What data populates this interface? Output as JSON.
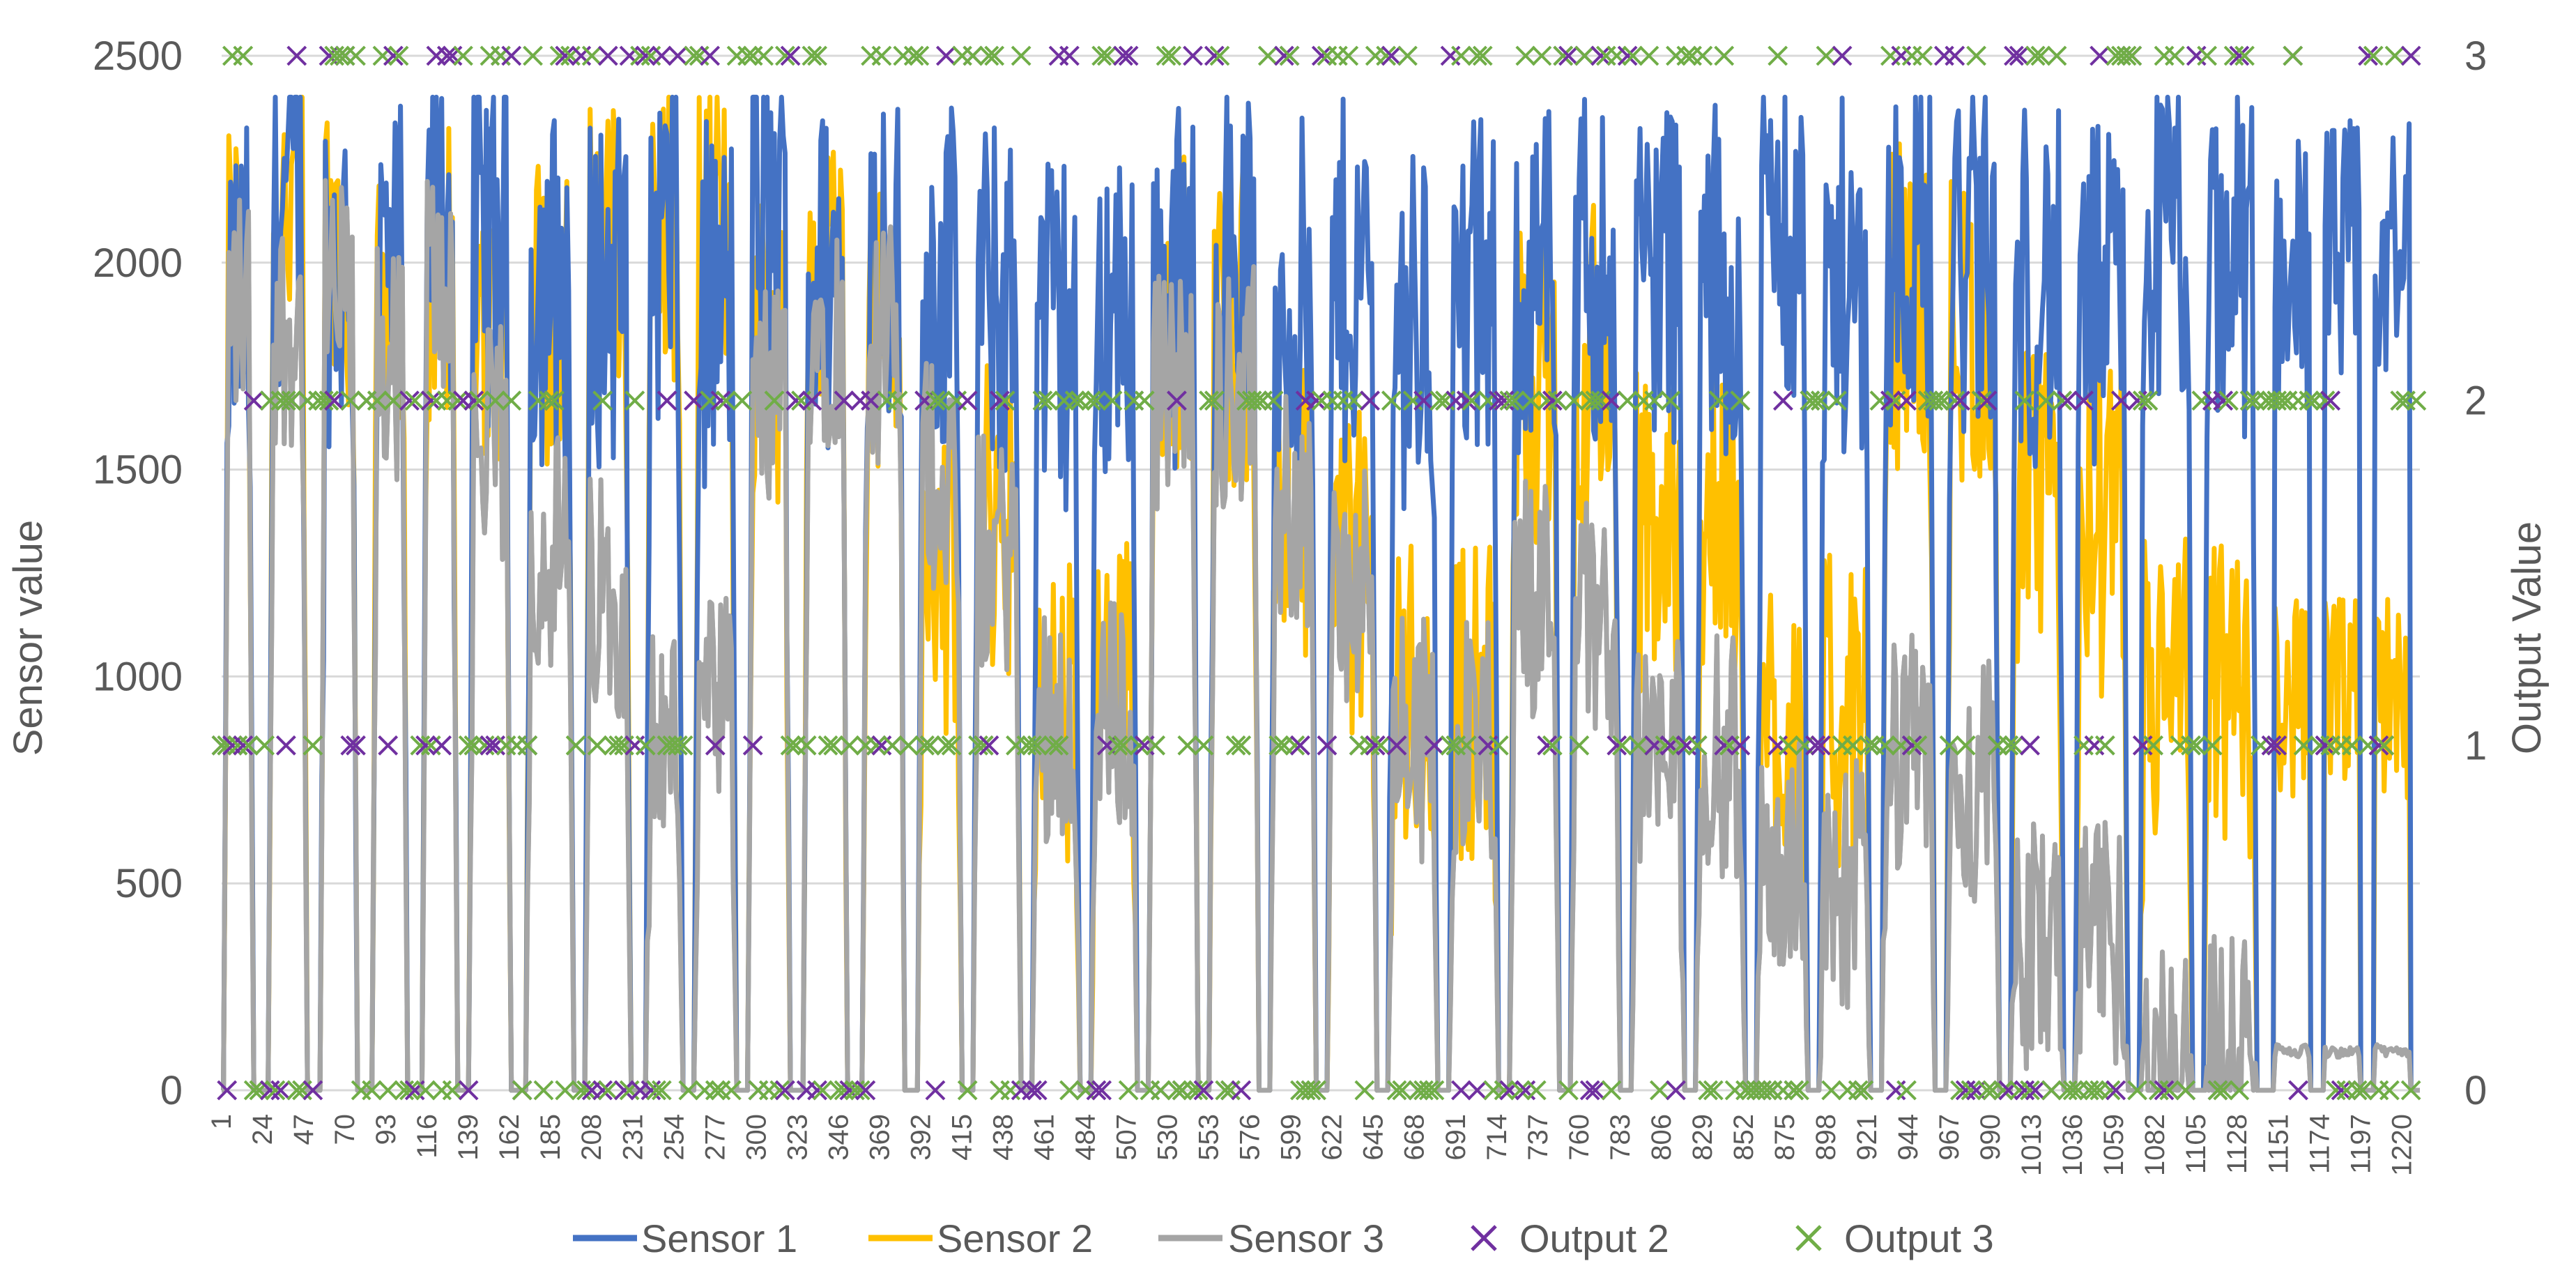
{
  "chart_data": {
    "type": "line",
    "title": "",
    "xlabel": "",
    "ylabel": "Sensor value",
    "y2label": "Output Value",
    "ylim": [
      0,
      2500
    ],
    "y2lim": [
      0,
      3
    ],
    "xlim": [
      1,
      1230
    ],
    "grid": true,
    "legend_position": "bottom",
    "y_ticks": [
      "0",
      "500",
      "1000",
      "1500",
      "2000",
      "2500"
    ],
    "y2_ticks": [
      "0",
      "1",
      "2",
      "3"
    ],
    "x_ticks": [
      "1",
      "24",
      "47",
      "70",
      "93",
      "116",
      "139",
      "162",
      "185",
      "208",
      "231",
      "254",
      "277",
      "300",
      "323",
      "346",
      "369",
      "392",
      "415",
      "438",
      "461",
      "484",
      "507",
      "530",
      "553",
      "576",
      "599",
      "622",
      "645",
      "668",
      "691",
      "714",
      "737",
      "760",
      "783",
      "806",
      "829",
      "852",
      "875",
      "898",
      "921",
      "944",
      "967",
      "990",
      "1013",
      "1036",
      "1059",
      "1082",
      "1105",
      "1128",
      "1151",
      "1174",
      "1197",
      "1220"
    ],
    "colors": {
      "sensor1": "#4472C4",
      "sensor2": "#FFC000",
      "sensor3": "#A5A5A5",
      "output2": "#7030A0",
      "output3": "#70AD47",
      "grid": "#D9D9D9",
      "text": "#595959"
    },
    "sensor_segments": {
      "description_note": "Sensor readings form repeated plateau pulses; each segment [start_sample, end_sample, sensor1_level, sensor2_level, sensor3_level]",
      "segments": [
        [
          3,
          18,
          1900,
          2000,
          1900
        ],
        [
          28,
          48,
          2150,
          2150,
          1850
        ],
        [
          57,
          76,
          2000,
          2050,
          1900
        ],
        [
          86,
          104,
          1950,
          2000,
          1750
        ],
        [
          114,
          132,
          2100,
          2000,
          1950
        ],
        [
          140,
          162,
          2050,
          1900,
          1550
        ],
        [
          172,
          197,
          1950,
          1900,
          1300
        ],
        [
          205,
          229,
          1950,
          2000,
          1200
        ],
        [
          239,
          258,
          2050,
          2100,
          850
        ],
        [
          266,
          288,
          1900,
          2050,
          900
        ],
        [
          296,
          318,
          2100,
          1800,
          1650
        ],
        [
          327,
          350,
          1950,
          1950,
          1850
        ],
        [
          360,
          382,
          2050,
          1850,
          1800
        ],
        [
          391,
          414,
          1950,
          1250,
          1500
        ],
        [
          422,
          447,
          1900,
          1400,
          1300
        ],
        [
          455,
          480,
          1850,
          900,
          900
        ],
        [
          488,
          512,
          1900,
          950,
          900
        ],
        [
          520,
          546,
          1950,
          1900,
          1700
        ],
        [
          554,
          580,
          2000,
          1850,
          1700
        ],
        [
          588,
          612,
          1900,
          1450,
          1400
        ],
        [
          620,
          646,
          1950,
          1250,
          1200
        ],
        [
          654,
          680,
          1850,
          950,
          850
        ],
        [
          688,
          714,
          1900,
          950,
          850
        ],
        [
          722,
          748,
          1950,
          1700,
          1200
        ],
        [
          756,
          782,
          2000,
          1750,
          1150
        ],
        [
          790,
          818,
          2000,
          1350,
          800
        ],
        [
          826,
          852,
          1950,
          1350,
          800
        ],
        [
          860,
          887,
          2050,
          900,
          550
        ],
        [
          895,
          922,
          1950,
          900,
          500
        ],
        [
          930,
          958,
          2050,
          1900,
          800
        ],
        [
          966,
          994,
          2000,
          1850,
          750
        ],
        [
          1002,
          1030,
          1950,
          1400,
          350
        ],
        [
          1038,
          1066,
          1900,
          1350,
          350
        ],
        [
          1074,
          1102,
          2050,
          950,
          90
        ],
        [
          1110,
          1138,
          2000,
          950,
          90
        ]
      ]
    },
    "series": [
      {
        "name": "Sensor 1",
        "type": "line",
        "axis": "left"
      },
      {
        "name": "Sensor 2",
        "type": "line",
        "axis": "left"
      },
      {
        "name": "Sensor 3",
        "type": "line",
        "axis": "left"
      },
      {
        "name": "Output 2",
        "type": "marker",
        "marker": "x",
        "axis": "right"
      },
      {
        "name": "Output 3",
        "type": "marker",
        "marker": "x",
        "axis": "right"
      }
    ]
  },
  "legend": {
    "sensor1_label": "Sensor 1",
    "sensor2_label": "Sensor 2",
    "sensor3_label": "Sensor 3",
    "output2_label": "Output 2",
    "output3_label": "Output 3"
  }
}
